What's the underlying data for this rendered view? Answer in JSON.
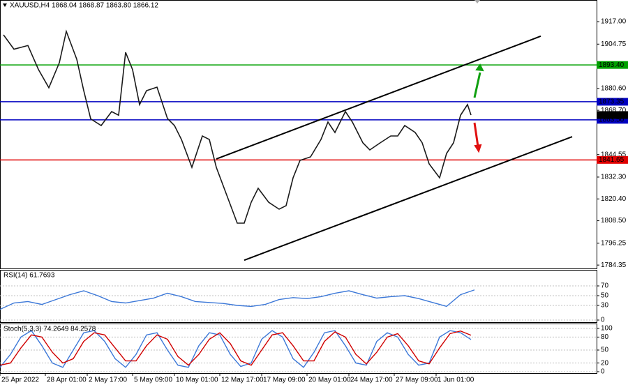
{
  "chart_data": [
    {
      "type": "line",
      "title": "XAUUSD,H4 1868.04 1868.87 1863.80 1866.12",
      "x": [
        1,
        4,
        8,
        11,
        14,
        17,
        19,
        22,
        24,
        26,
        29,
        32,
        34,
        36,
        38,
        40,
        42,
        45,
        48,
        50,
        52,
        55,
        58,
        60,
        62,
        65,
        68,
        70,
        72,
        74,
        77,
        80,
        82,
        84,
        86,
        89,
        92,
        94,
        96,
        99,
        101,
        104,
        106,
        109,
        112,
        114,
        116,
        119,
        121,
        123,
        126,
        128,
        130,
        132,
        134,
        135
      ],
      "series": [
        {
          "color": "#1a1a1a",
          "values": [
            1909.8,
            1902,
            1904,
            1891,
            1881,
            1894.6,
            1911.7,
            1896.5,
            1879.4,
            1864,
            1860.4,
            1868,
            1866,
            1900.3,
            1890.8,
            1871.8,
            1879.4,
            1881.3,
            1864.2,
            1860.4,
            1852.8,
            1837.6,
            1854.7,
            1852.8,
            1837.6,
            1822.4,
            1807.2,
            1807.2,
            1818.6,
            1826.2,
            1818.6,
            1814.8,
            1816.7,
            1831.9,
            1841.4,
            1843.3,
            1852.8,
            1862.3,
            1856.6,
            1868,
            1862.3,
            1851,
            1847.1,
            1851,
            1854.7,
            1854.7,
            1860.4,
            1856.6,
            1851,
            1839.5,
            1831.9,
            1845.2,
            1851,
            1866,
            1871.8,
            1866.12
          ]
        }
      ],
      "xlim": [
        0,
        171
      ],
      "xticks": [
        {
          "value": 0,
          "label": "25 Apr 2022"
        },
        {
          "value": 13,
          "label": "28 Apr 01:00"
        },
        {
          "value": 25,
          "label": "2 May 17:00"
        },
        {
          "value": 38,
          "label": "5 May 09:00"
        },
        {
          "value": 50,
          "label": "10 May 01:00"
        },
        {
          "value": 63,
          "label": "12 May 17:00"
        },
        {
          "value": 75,
          "label": "17 May 09:00"
        },
        {
          "value": 88,
          "label": "20 May 01:00"
        },
        {
          "value": 100,
          "label": "24 May 17:00"
        },
        {
          "value": 113,
          "label": "27 May 09:00"
        },
        {
          "value": 125,
          "label": "1 Jun 01:00"
        }
      ],
      "ylim": [
        1782.5,
        1928.8
      ],
      "yticks": [
        {
          "value": 1917,
          "label": "1917.00"
        },
        {
          "value": 1904.75,
          "label": "1904.75"
        },
        {
          "value": 1880.6,
          "label": "1880.60"
        },
        {
          "value": 1868.7,
          "label": "1868.70"
        },
        {
          "value": 1844.55,
          "label": "1844.55"
        },
        {
          "value": 1832.3,
          "label": "1832.30"
        },
        {
          "value": 1820.4,
          "label": "1820.40"
        },
        {
          "value": 1808.5,
          "label": "1808.50"
        },
        {
          "value": 1796.25,
          "label": "1796.25"
        },
        {
          "value": 1784.35,
          "label": "1784.35"
        }
      ],
      "levels": [
        {
          "value": 1893.4,
          "label": "1893.40",
          "color": "#00a000"
        },
        {
          "value": 1873.35,
          "label": "1873.35",
          "color": "#0000c0"
        },
        {
          "value": 1863.5,
          "label": "1863.50",
          "color": "#0000c0"
        },
        {
          "value": 1841.65,
          "label": "1841.65",
          "color": "#e00000"
        }
      ],
      "current_price": {
        "value": 1866.12,
        "label": "1866.12"
      },
      "trendlines": [
        {
          "x": [
            62,
            155
          ],
          "y": [
            1842.2,
            1909.1
          ],
          "color": "#000000"
        },
        {
          "x": [
            70,
            164
          ],
          "y": [
            1787,
            1854.3
          ],
          "color": "#000000"
        }
      ]
    },
    {
      "type": "line",
      "title": "RSI(14) 61.7693",
      "x": [
        0,
        4,
        8,
        12,
        16,
        20,
        24,
        28,
        32,
        36,
        40,
        44,
        48,
        52,
        56,
        60,
        64,
        68,
        72,
        76,
        80,
        84,
        88,
        92,
        96,
        100,
        104,
        108,
        112,
        116,
        120,
        124,
        128,
        132,
        136
      ],
      "series": [
        {
          "color": "#3c78d8",
          "values": [
            22,
            35,
            38,
            32,
            42,
            52,
            60,
            50,
            38,
            35,
            40,
            45,
            55,
            48,
            38,
            36,
            34,
            30,
            28,
            32,
            42,
            46,
            44,
            48,
            55,
            60,
            52,
            45,
            48,
            50,
            44,
            36,
            28,
            52,
            61.8
          ]
        }
      ],
      "xlim": [
        0,
        171
      ],
      "ylim": [
        -4.3,
        102.9
      ],
      "yticks": [
        0,
        30,
        50,
        70
      ],
      "grid": true
    },
    {
      "type": "line",
      "title": "Stoch(5,3,3) 74.2649 84.2578",
      "x": [
        0,
        3,
        6,
        9,
        12,
        15,
        18,
        21,
        24,
        27,
        30,
        33,
        36,
        39,
        42,
        45,
        48,
        51,
        54,
        57,
        60,
        63,
        66,
        69,
        72,
        75,
        78,
        81,
        84,
        87,
        90,
        93,
        96,
        99,
        102,
        105,
        108,
        111,
        114,
        117,
        120,
        123,
        126,
        129,
        132,
        135
      ],
      "series": [
        {
          "color": "#3c78d8",
          "values": [
            10,
            40,
            80,
            95,
            60,
            20,
            10,
            50,
            90,
            95,
            70,
            30,
            10,
            40,
            85,
            90,
            50,
            15,
            10,
            60,
            90,
            85,
            40,
            12,
            20,
            75,
            95,
            80,
            30,
            10,
            45,
            90,
            95,
            60,
            20,
            15,
            70,
            90,
            80,
            40,
            15,
            20,
            80,
            95,
            90,
            74.3
          ]
        },
        {
          "color": "#d00000",
          "values": [
            15,
            20,
            55,
            85,
            80,
            45,
            20,
            30,
            70,
            90,
            85,
            55,
            25,
            25,
            60,
            85,
            75,
            35,
            15,
            40,
            75,
            90,
            65,
            25,
            15,
            50,
            85,
            90,
            60,
            25,
            25,
            70,
            92,
            80,
            40,
            18,
            45,
            80,
            88,
            60,
            25,
            18,
            55,
            88,
            94,
            84.3
          ]
        }
      ],
      "xlim": [
        0,
        171
      ],
      "ylim": [
        -3.2,
        111.3
      ],
      "yticks": [
        0,
        20,
        50,
        80,
        100
      ],
      "grid": true
    }
  ]
}
